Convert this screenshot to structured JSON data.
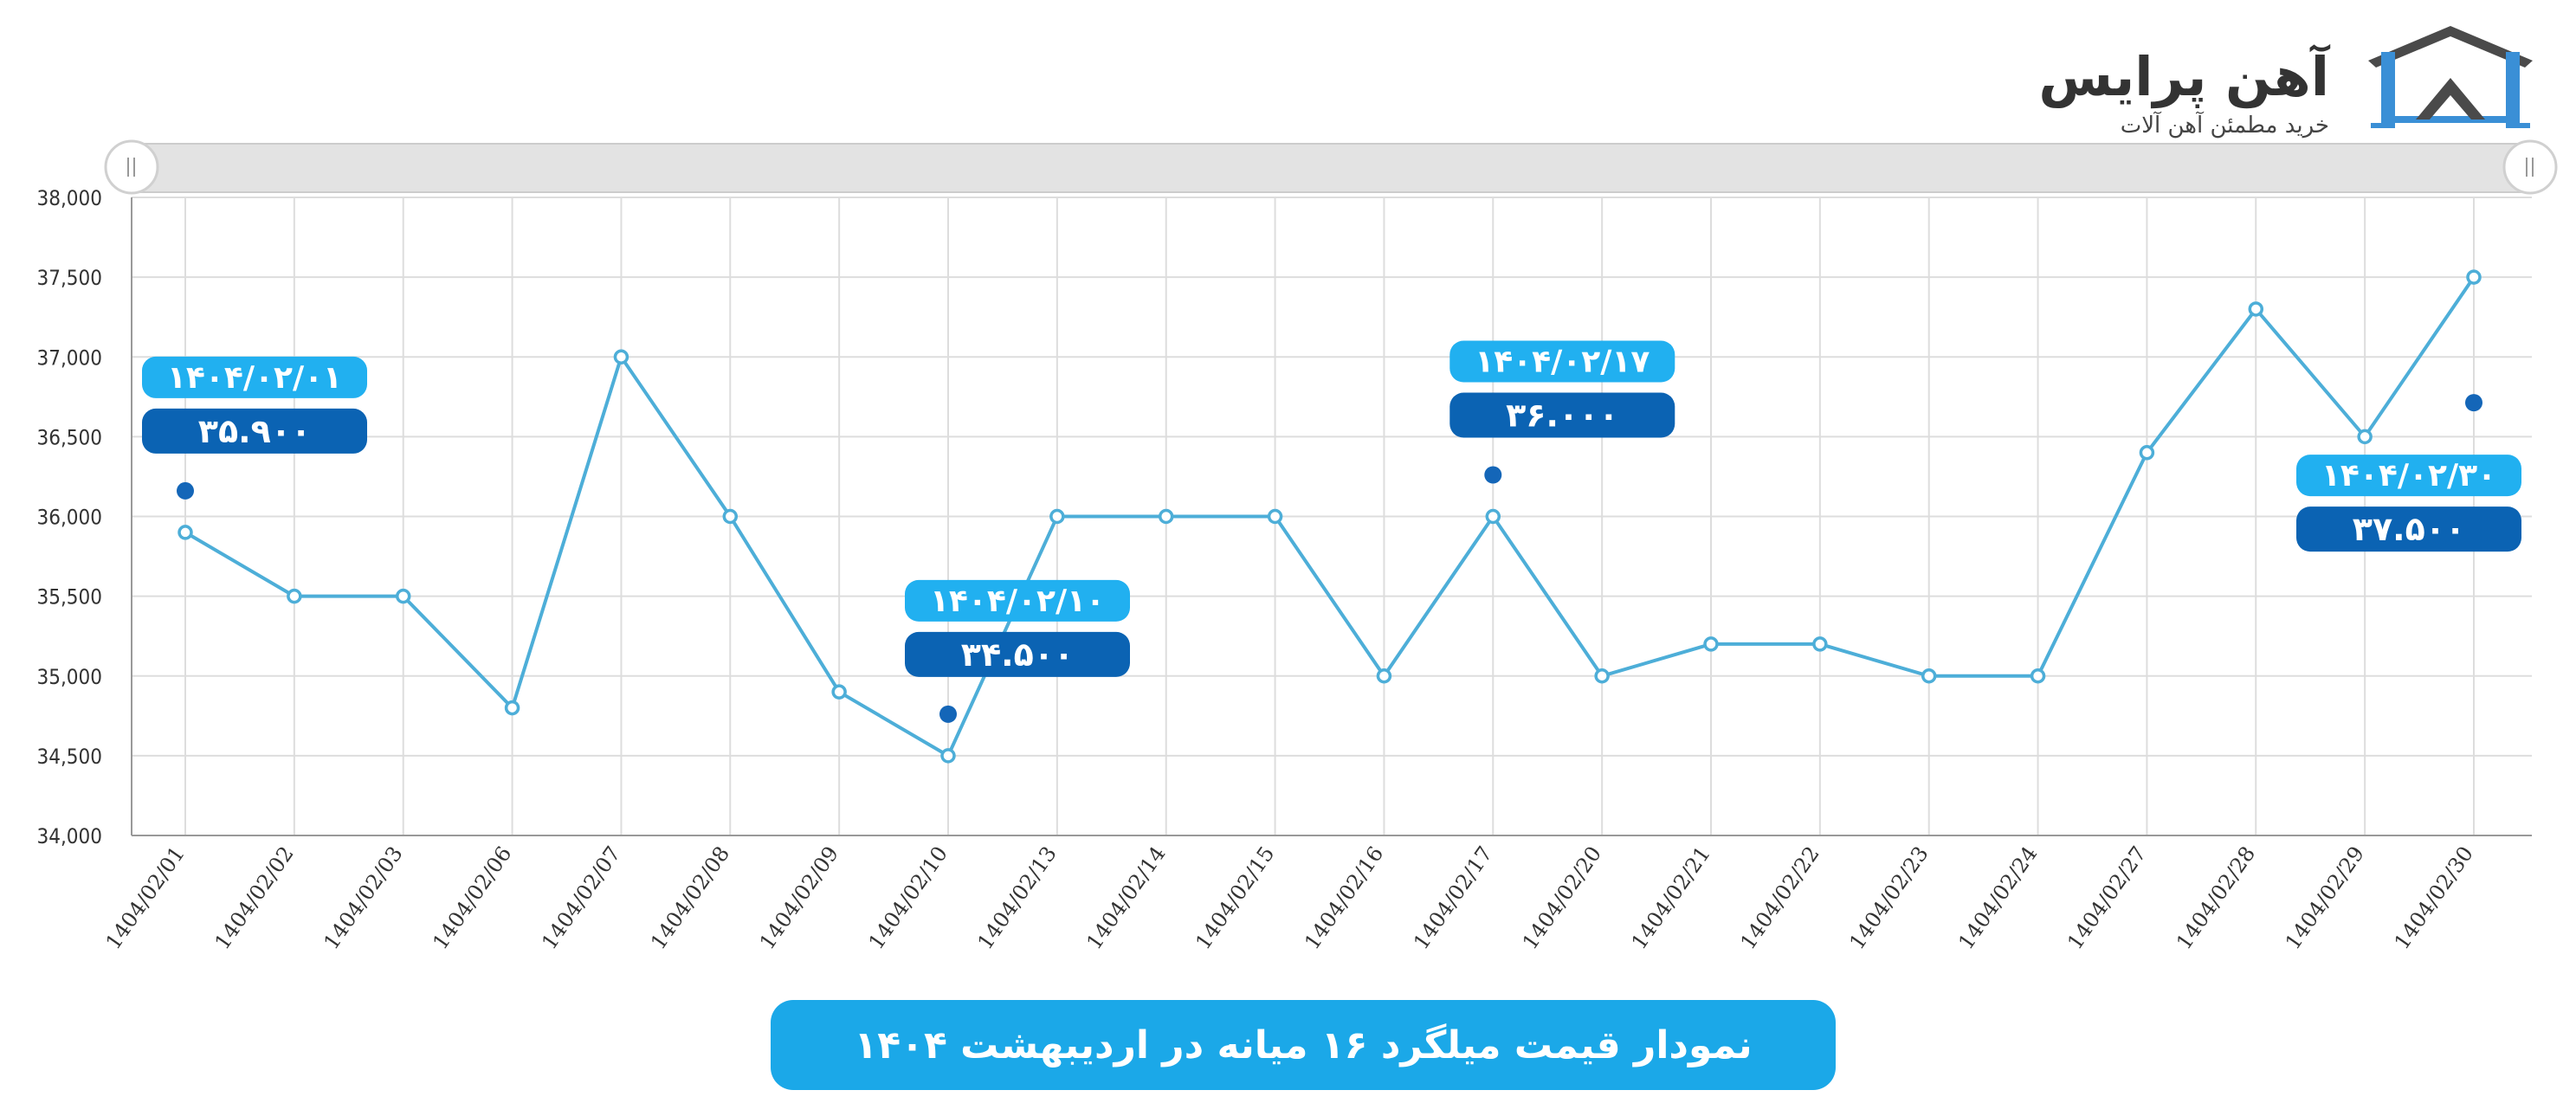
{
  "logo": {
    "brand_name": "آهن پرایس",
    "tagline": "خرید مطمئن آهن آلات",
    "brand_color": "#3a8fd6",
    "dark_color": "#4a4a4a"
  },
  "colors": {
    "line": "#4daed8",
    "point_fill": "#ffffff",
    "date_tag": "#21b0f0",
    "price_tag": "#0b63b3",
    "marker_dot": "#1466b8",
    "grid": "#dddddd",
    "title_banner": "#1ba8e8"
  },
  "chart_data": {
    "type": "line",
    "title": "نمودار قیمت میلگرد ۱۶ میانه در اردیبهشت ۱۴۰۴",
    "xlabel": "",
    "ylabel": "",
    "categories": [
      "1404/02/01",
      "1404/02/02",
      "1404/02/03",
      "1404/02/06",
      "1404/02/07",
      "1404/02/08",
      "1404/02/09",
      "1404/02/10",
      "1404/02/13",
      "1404/02/14",
      "1404/02/15",
      "1404/02/16",
      "1404/02/17",
      "1404/02/20",
      "1404/02/21",
      "1404/02/22",
      "1404/02/23",
      "1404/02/24",
      "1404/02/27",
      "1404/02/28",
      "1404/02/29",
      "1404/02/30"
    ],
    "series": [
      {
        "values": [
          35900,
          35500,
          35500,
          34800,
          37000,
          36000,
          34900,
          34500,
          36000,
          36000,
          36000,
          35000,
          36000,
          35000,
          35200,
          35200,
          35000,
          35000,
          36400,
          37300,
          36500,
          37500
        ]
      }
    ],
    "ylim": [
      34000,
      38000
    ],
    "yticks": [
      34000,
      34500,
      35000,
      35500,
      36000,
      36500,
      37000,
      37500,
      38000
    ],
    "ytick_labels": [
      "34,000",
      "34,500",
      "35,000",
      "35,500",
      "36,000",
      "36,500",
      "37,000",
      "37,500",
      "38,000"
    ],
    "grid": true,
    "legend": "none",
    "annotations": [
      {
        "index": 0,
        "date": "۱۴۰۴/۰۲/۰۱",
        "price": "۳۵.۹۰۰",
        "value": 35900,
        "placement": "above"
      },
      {
        "index": 7,
        "date": "۱۴۰۴/۰۲/۱۰",
        "price": "۳۴.۵۰۰",
        "value": 34500,
        "placement": "above"
      },
      {
        "index": 12,
        "date": "۱۴۰۴/۰۲/۱۷",
        "price": "۳۶.۰۰۰",
        "value": 36000,
        "placement": "above"
      },
      {
        "index": 21,
        "date": "۱۴۰۴/۰۲/۳۰",
        "price": "۳۷.۵۰۰",
        "value": 37500,
        "placement": "below"
      }
    ]
  }
}
